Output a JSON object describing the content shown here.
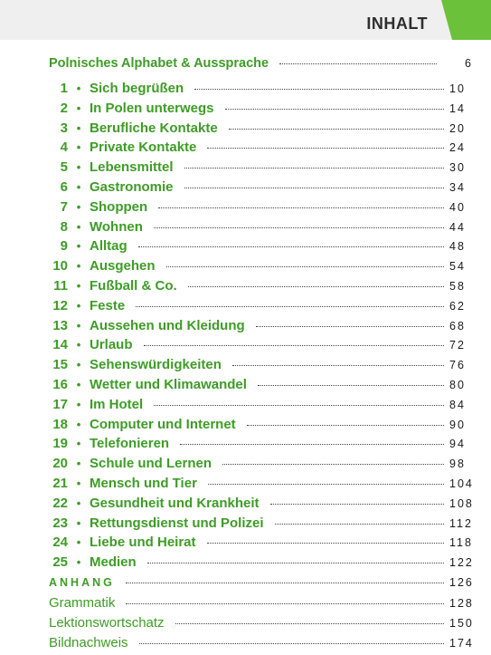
{
  "header": {
    "title": "INHALT"
  },
  "toc": {
    "intro": {
      "title": "Polnisches Alphabet & Aussprache",
      "page": "6"
    },
    "chapters": [
      {
        "num": "1",
        "title": "Sich begrüßen",
        "page": "10"
      },
      {
        "num": "2",
        "title": "In Polen unterwegs",
        "page": "14"
      },
      {
        "num": "3",
        "title": "Berufliche Kontakte",
        "page": "20"
      },
      {
        "num": "4",
        "title": "Private Kontakte",
        "page": "24"
      },
      {
        "num": "5",
        "title": "Lebensmittel",
        "page": "30"
      },
      {
        "num": "6",
        "title": "Gastronomie",
        "page": "34"
      },
      {
        "num": "7",
        "title": "Shoppen",
        "page": "40"
      },
      {
        "num": "8",
        "title": "Wohnen",
        "page": "44"
      },
      {
        "num": "9",
        "title": "Alltag",
        "page": "48"
      },
      {
        "num": "10",
        "title": "Ausgehen",
        "page": "54"
      },
      {
        "num": "11",
        "title": "Fußball & Co.",
        "page": "58"
      },
      {
        "num": "12",
        "title": "Feste",
        "page": "62"
      },
      {
        "num": "13",
        "title": "Aussehen und Kleidung",
        "page": "68"
      },
      {
        "num": "14",
        "title": "Urlaub",
        "page": "72"
      },
      {
        "num": "15",
        "title": "Sehenswürdigkeiten",
        "page": "76"
      },
      {
        "num": "16",
        "title": "Wetter und Klimawandel",
        "page": "80"
      },
      {
        "num": "17",
        "title": "Im Hotel",
        "page": "84"
      },
      {
        "num": "18",
        "title": "Computer und Internet",
        "page": "90"
      },
      {
        "num": "19",
        "title": "Telefonieren",
        "page": "94"
      },
      {
        "num": "20",
        "title": "Schule und Lernen",
        "page": "98"
      },
      {
        "num": "21",
        "title": "Mensch und Tier",
        "page": "104"
      },
      {
        "num": "22",
        "title": "Gesundheit und Krankheit",
        "page": "108"
      },
      {
        "num": "23",
        "title": "Rettungsdienst und Polizei",
        "page": "112"
      },
      {
        "num": "24",
        "title": "Liebe und Heirat",
        "page": "118"
      },
      {
        "num": "25",
        "title": "Medien",
        "page": "122"
      }
    ],
    "appendix_head": {
      "title": "ANHANG",
      "page": "126"
    },
    "appendix": [
      {
        "title": "Grammatik",
        "page": "128"
      },
      {
        "title": "Lektionswortschatz",
        "page": "150"
      },
      {
        "title": "Bildnachweis",
        "page": "174"
      }
    ]
  },
  "colors": {
    "accent": "#3e9c26",
    "header_bg": "#efefef",
    "header_tab": "#6cc13a"
  }
}
